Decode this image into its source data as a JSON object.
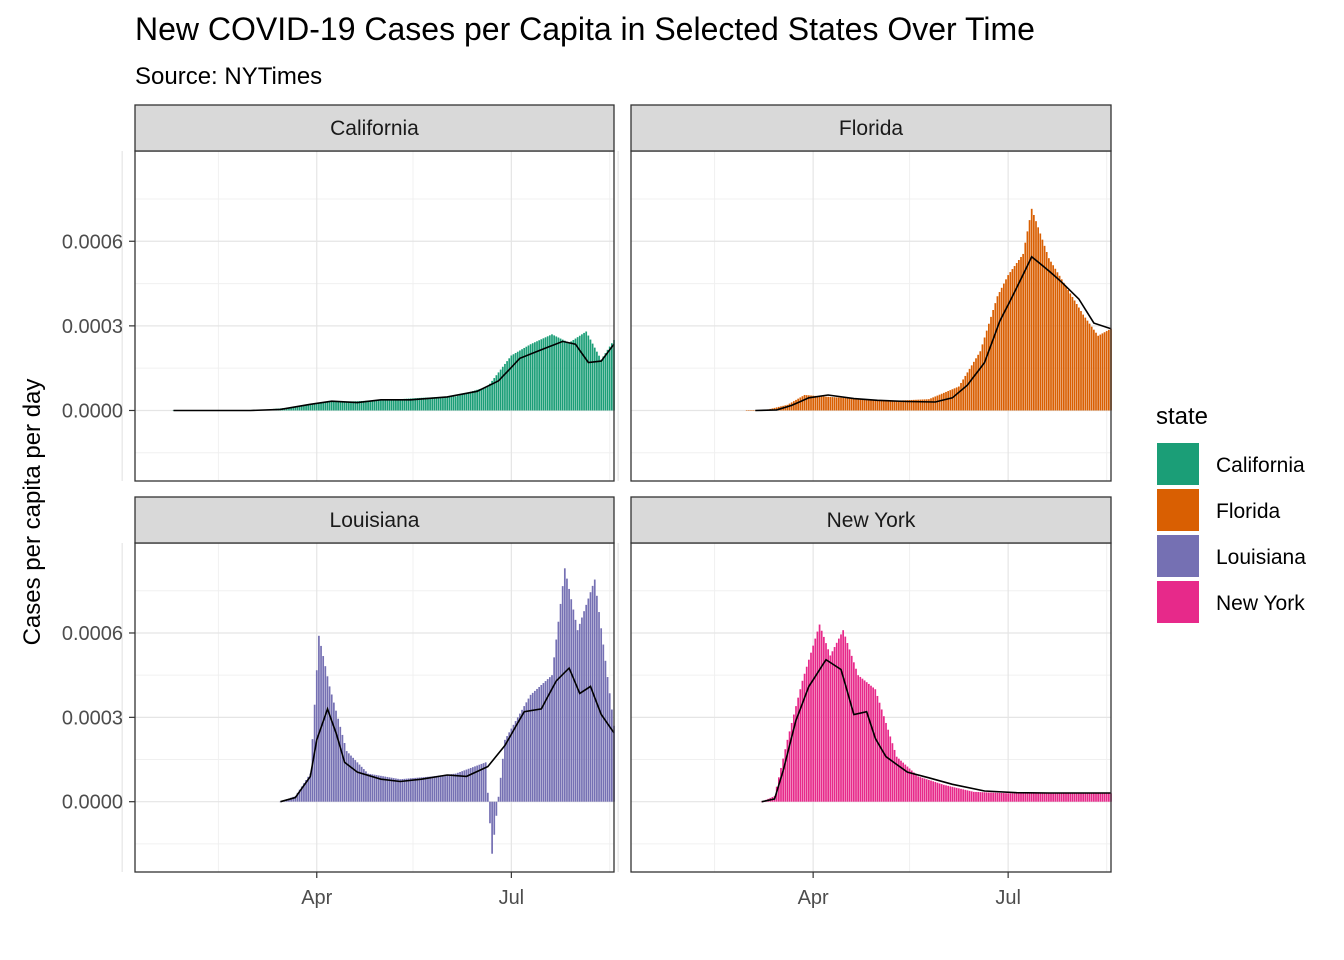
{
  "chart_data": {
    "type": "bar",
    "title": "New COVID-19 Cases per Capita in Selected States Over Time",
    "subtitle": "Source: NYTimes",
    "ylabel": "Cases per capita per day",
    "xlabel": "",
    "x_axis": {
      "type": "date",
      "range": [
        "2020-01-07",
        "2020-08-18"
      ],
      "tick_labels": [
        {
          "date": "2020-04-01",
          "label": "Apr"
        },
        {
          "date": "2020-07-01",
          "label": "Jul"
        }
      ],
      "minor_grid_dates": [
        "2020-02-15",
        "2020-05-16",
        "2020-08-16"
      ],
      "major_grid_dates": [
        "2020-01-01",
        "2020-04-01",
        "2020-07-01"
      ]
    },
    "y_axis": {
      "range": [
        -0.00025,
        0.00092
      ],
      "tick_values": [
        0,
        0.0003,
        0.0006
      ],
      "tick_labels": [
        "0.0000",
        "0.0003",
        "0.0006"
      ]
    },
    "grid": true,
    "legend": {
      "title": "state",
      "placement": "right",
      "entries": [
        "California",
        "Florida",
        "Louisiana",
        "New York"
      ]
    },
    "colors": {
      "California": "#1b9e77",
      "Florida": "#d95f02",
      "Louisiana": "#7570b3",
      "New York": "#e7298a",
      "smooth_line": "#000000",
      "strip_fill": "#d9d9d9"
    },
    "panels": [
      {
        "state": "California",
        "x": [
          "2020-01-25",
          "2020-03-06",
          "2020-03-22",
          "2020-04-05",
          "2020-04-20",
          "2020-05-05",
          "2020-05-20",
          "2020-06-05",
          "2020-06-20",
          "2020-07-01",
          "2020-07-10",
          "2020-07-20",
          "2020-07-28",
          "2020-08-05",
          "2020-08-12",
          "2020-08-18"
        ],
        "values": [
          0,
          2e-06,
          1.2e-05,
          3e-05,
          3.3e-05,
          3.8e-05,
          4.5e-05,
          5e-05,
          8.5e-05,
          0.000195,
          0.000235,
          0.00027,
          0.00024,
          0.00028,
          0.00018,
          0.00025
        ],
        "avg_x": [
          "2020-01-25",
          "2020-03-01",
          "2020-03-15",
          "2020-03-29",
          "2020-04-08",
          "2020-04-20",
          "2020-05-01",
          "2020-05-15",
          "2020-06-01",
          "2020-06-15",
          "2020-06-25",
          "2020-07-05",
          "2020-07-15",
          "2020-07-25",
          "2020-07-31",
          "2020-08-06",
          "2020-08-12",
          "2020-08-18"
        ],
        "avg_values": [
          0,
          0,
          4e-06,
          2.2e-05,
          3.3e-05,
          2.8e-05,
          3.8e-05,
          3.8e-05,
          4.8e-05,
          6.8e-05,
          0.000105,
          0.000185,
          0.000215,
          0.000245,
          0.000235,
          0.00017,
          0.000175,
          0.000235
        ]
      },
      {
        "state": "Florida",
        "x": [
          "2020-03-01",
          "2020-03-10",
          "2020-03-20",
          "2020-03-28",
          "2020-04-05",
          "2020-04-15",
          "2020-04-25",
          "2020-05-10",
          "2020-05-25",
          "2020-06-08",
          "2020-06-18",
          "2020-06-26",
          "2020-07-01",
          "2020-07-08",
          "2020-07-12",
          "2020-07-20",
          "2020-07-28",
          "2020-08-05",
          "2020-08-12",
          "2020-08-18"
        ],
        "values": [
          0,
          2e-06,
          2e-05,
          5.5e-05,
          5e-05,
          4.5e-05,
          4e-05,
          3.5e-05,
          4e-05,
          8.5e-05,
          0.00021,
          0.000405,
          0.00048,
          0.000555,
          0.000715,
          0.00054,
          0.00044,
          0.00034,
          0.000265,
          0.00029
        ],
        "avg_x": [
          "2020-03-05",
          "2020-03-15",
          "2020-03-22",
          "2020-03-30",
          "2020-04-08",
          "2020-04-20",
          "2020-05-01",
          "2020-05-15",
          "2020-05-28",
          "2020-06-05",
          "2020-06-12",
          "2020-06-20",
          "2020-06-27",
          "2020-07-05",
          "2020-07-12",
          "2020-07-20",
          "2020-07-26",
          "2020-08-03",
          "2020-08-10",
          "2020-08-18"
        ],
        "avg_values": [
          0,
          2e-06,
          1.8e-05,
          4.5e-05,
          5.5e-05,
          4.2e-05,
          3.6e-05,
          3.2e-05,
          3e-05,
          4.5e-05,
          9e-05,
          0.00017,
          0.000315,
          0.000435,
          0.000545,
          0.000495,
          0.000455,
          0.000395,
          0.00031,
          0.00029
        ]
      },
      {
        "state": "Louisiana",
        "x": [
          "2020-03-15",
          "2020-03-22",
          "2020-03-29",
          "2020-04-02",
          "2020-04-07",
          "2020-04-15",
          "2020-04-25",
          "2020-05-10",
          "2020-05-25",
          "2020-06-05",
          "2020-06-19",
          "2020-06-22",
          "2020-06-28",
          "2020-07-10",
          "2020-07-20",
          "2020-07-26",
          "2020-08-01",
          "2020-08-09",
          "2020-08-18"
        ],
        "values": [
          0,
          2e-05,
          0.0001,
          0.00059,
          0.00041,
          0.00018,
          0.0001,
          8e-05,
          9e-05,
          0.0001,
          0.00014,
          -0.000185,
          0.00022,
          0.00038,
          0.00045,
          0.00083,
          0.00061,
          0.00079,
          0.00027
        ],
        "avg_x": [
          "2020-03-15",
          "2020-03-22",
          "2020-03-29",
          "2020-04-01",
          "2020-04-06",
          "2020-04-10",
          "2020-04-14",
          "2020-04-20",
          "2020-05-01",
          "2020-05-10",
          "2020-05-20",
          "2020-06-01",
          "2020-06-10",
          "2020-06-20",
          "2020-06-28",
          "2020-07-07",
          "2020-07-15",
          "2020-07-22",
          "2020-07-28",
          "2020-08-02",
          "2020-08-07",
          "2020-08-12",
          "2020-08-18"
        ],
        "avg_values": [
          0,
          1.5e-05,
          9e-05,
          0.00022,
          0.00033,
          0.000245,
          0.00014,
          0.000105,
          8e-05,
          7.2e-05,
          8e-05,
          9.5e-05,
          9e-05,
          0.000125,
          0.0002,
          0.00032,
          0.00033,
          0.00043,
          0.000475,
          0.000385,
          0.00041,
          0.00031,
          0.000245
        ]
      },
      {
        "state": "New York",
        "x": [
          "2020-03-08",
          "2020-03-14",
          "2020-03-20",
          "2020-03-27",
          "2020-04-04",
          "2020-04-09",
          "2020-04-15",
          "2020-04-22",
          "2020-04-30",
          "2020-05-10",
          "2020-05-20",
          "2020-06-01",
          "2020-06-15",
          "2020-07-01",
          "2020-07-15",
          "2020-08-01",
          "2020-08-18"
        ],
        "values": [
          0,
          2e-05,
          0.00022,
          0.00043,
          0.00063,
          0.00052,
          0.00061,
          0.00045,
          0.0004,
          0.00016,
          9e-05,
          6e-05,
          3.5e-05,
          3e-05,
          3e-05,
          3.2e-05,
          3e-05
        ],
        "avg_x": [
          "2020-03-08",
          "2020-03-14",
          "2020-03-18",
          "2020-03-24",
          "2020-03-30",
          "2020-04-07",
          "2020-04-14",
          "2020-04-20",
          "2020-04-26",
          "2020-04-30",
          "2020-05-05",
          "2020-05-15",
          "2020-05-25",
          "2020-06-05",
          "2020-06-20",
          "2020-07-05",
          "2020-07-20",
          "2020-08-05",
          "2020-08-18"
        ],
        "avg_values": [
          0,
          1e-05,
          0.00011,
          0.00029,
          0.00041,
          0.000505,
          0.00047,
          0.00031,
          0.00032,
          0.000225,
          0.00016,
          0.000105,
          8.5e-05,
          6.2e-05,
          3.8e-05,
          3.2e-05,
          3.1e-05,
          3.1e-05,
          3.1e-05
        ]
      }
    ]
  }
}
